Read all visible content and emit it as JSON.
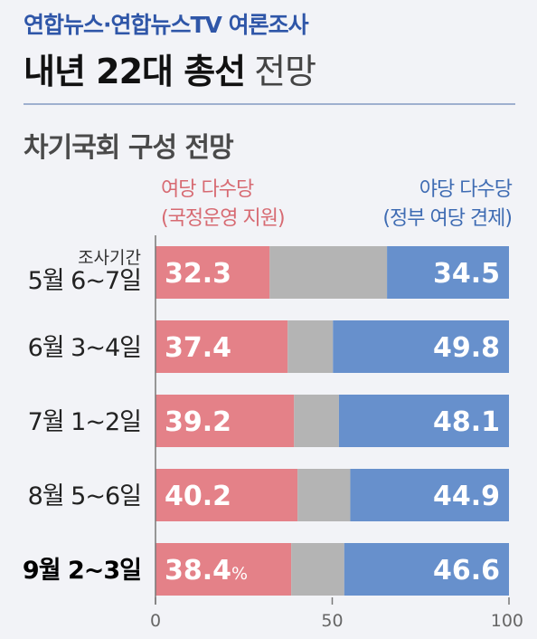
{
  "header": {
    "source": "연합뉴스·연합뉴스TV 여론조사",
    "title_strong": "내년 22대 총선",
    "title_light": "전망",
    "subtitle": "차기국회 구성 전망"
  },
  "legend": {
    "left_line1": "여당 다수당",
    "left_line2": "(국정운영 지원)",
    "right_line1": "야당 다수당",
    "right_line2": "(정부 여당 견제)"
  },
  "period_header": "조사기간",
  "colors": {
    "ruling": "#e48188",
    "neutral": "#b4b4b4",
    "opposition": "#6790cc",
    "axis": "#777777",
    "label": "#222222"
  },
  "chart_data": {
    "type": "bar",
    "stacked": true,
    "orientation": "horizontal",
    "categories": [
      "5월 6~7일",
      "6월 3~4일",
      "7월 1~2일",
      "8월 5~6일",
      "9월 2~3일"
    ],
    "bold_category_index": 4,
    "series": [
      {
        "name": "여당 다수당 (국정운영 지원)",
        "values": [
          32.3,
          37.4,
          39.2,
          40.2,
          38.4
        ],
        "labels": [
          "32.3",
          "37.4",
          "39.2",
          "40.2",
          "38.4"
        ]
      },
      {
        "name": "",
        "values": [
          33.2,
          12.8,
          12.7,
          14.9,
          15.0
        ],
        "labels": [
          "",
          "",
          "",
          "",
          ""
        ]
      },
      {
        "name": "야당 다수당 (정부 여당 견제)",
        "values": [
          34.5,
          49.8,
          48.1,
          44.9,
          46.6
        ],
        "labels": [
          "34.5",
          "49.8",
          "48.1",
          "44.9",
          "46.6"
        ]
      }
    ],
    "last_label_unit": "%",
    "xlim": [
      0,
      100
    ],
    "xticks": [
      "0",
      "50",
      "100"
    ],
    "xtick_values": [
      0,
      50,
      100
    ],
    "grid": false
  }
}
